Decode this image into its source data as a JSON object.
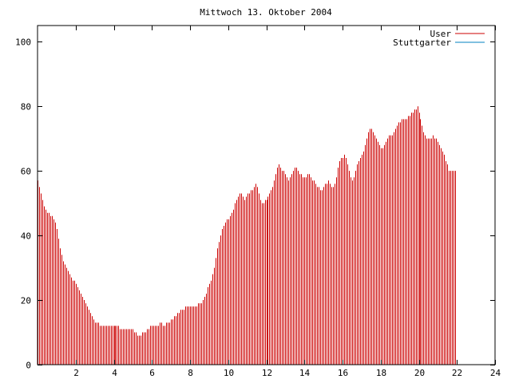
{
  "chart_data": {
    "type": "bar",
    "title": "Mittwoch 13. Oktober 2004",
    "xlabel": "",
    "ylabel": "",
    "xlim": [
      0,
      24
    ],
    "ylim": [
      0,
      105
    ],
    "xticks": [
      2,
      4,
      6,
      8,
      10,
      12,
      14,
      16,
      18,
      20,
      22,
      24
    ],
    "yticks": [
      0,
      20,
      40,
      60,
      80,
      100
    ],
    "grid": false,
    "legend_position": "top-right",
    "series": [
      {
        "name": "User",
        "color": "#cc0000",
        "samples_per_hour": 12,
        "values": [
          57,
          55,
          53,
          51,
          49,
          48,
          47,
          47,
          46,
          46,
          45,
          44,
          42,
          39,
          36,
          34,
          32,
          31,
          30,
          29,
          28,
          27,
          26,
          26,
          25,
          24,
          23,
          22,
          21,
          20,
          19,
          18,
          17,
          16,
          15,
          14,
          13,
          13,
          13,
          12,
          12,
          12,
          12,
          12,
          12,
          12,
          12,
          12,
          12,
          12,
          12,
          12,
          11,
          11,
          11,
          11,
          11,
          11,
          11,
          11,
          11,
          10,
          10,
          9,
          9,
          9,
          10,
          10,
          10,
          11,
          11,
          12,
          12,
          12,
          12,
          12,
          12,
          13,
          13,
          12,
          12,
          13,
          13,
          13,
          14,
          14,
          15,
          15,
          16,
          16,
          17,
          17,
          17,
          18,
          18,
          18,
          18,
          18,
          18,
          18,
          18,
          19,
          19,
          19,
          20,
          21,
          22,
          24,
          25,
          26,
          28,
          30,
          33,
          36,
          38,
          40,
          42,
          43,
          44,
          45,
          45,
          46,
          47,
          48,
          50,
          51,
          52,
          53,
          53,
          52,
          51,
          52,
          53,
          53,
          54,
          54,
          55,
          56,
          55,
          53,
          51,
          50,
          50,
          51,
          51,
          52,
          53,
          54,
          55,
          57,
          59,
          61,
          62,
          61,
          60,
          60,
          59,
          58,
          57,
          58,
          59,
          60,
          61,
          61,
          60,
          59,
          59,
          58,
          58,
          58,
          59,
          59,
          58,
          57,
          57,
          56,
          55,
          55,
          54,
          54,
          55,
          56,
          56,
          57,
          56,
          55,
          55,
          56,
          58,
          61,
          63,
          64,
          64,
          65,
          64,
          62,
          60,
          58,
          57,
          58,
          60,
          62,
          63,
          64,
          65,
          66,
          68,
          70,
          72,
          73,
          73,
          72,
          71,
          70,
          69,
          68,
          67,
          67,
          68,
          69,
          70,
          71,
          71,
          71,
          72,
          73,
          74,
          75,
          75,
          76,
          76,
          76,
          76,
          77,
          77,
          78,
          78,
          79,
          79,
          80,
          78,
          76,
          74,
          72,
          71,
          70,
          70,
          70,
          70,
          71,
          70,
          70,
          69,
          68,
          67,
          66,
          65,
          63,
          62,
          60,
          60,
          60,
          60,
          60
        ]
      },
      {
        "name": "Stuttgarter",
        "color": "#0080c0",
        "values": []
      }
    ]
  }
}
